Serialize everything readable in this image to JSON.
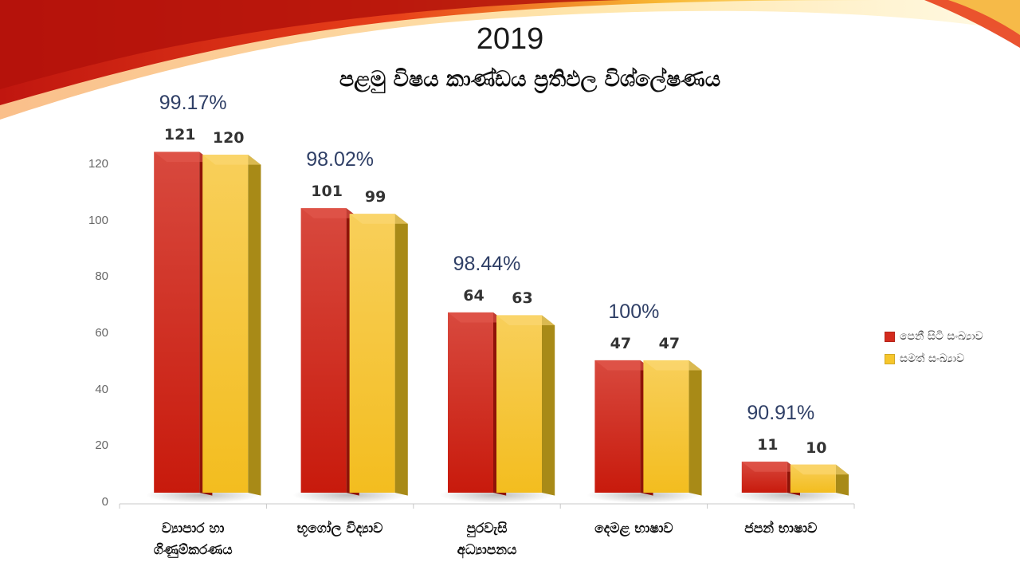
{
  "title": "2019",
  "subtitle": "පළමු විෂය කාණ්ඩය ප්‍රතිඵල විශ්ලේෂණය",
  "colors": {
    "sat": "#d42b1e",
    "pass": "#f6c62c",
    "percent_text": "#2f3f66"
  },
  "chart_data": {
    "type": "bar",
    "categories": [
      [
        "ව්‍යාපාර හා",
        "ගිණුම්කරණය"
      ],
      [
        "භූගෝල විද්‍යාව"
      ],
      [
        "පුරවැසි",
        "අධ්‍යාපනය"
      ],
      [
        "දෙමළ භාෂාව"
      ],
      [
        "ජපන් භාෂාව"
      ]
    ],
    "series": [
      {
        "name": "පෙනී සිටි සංඛ්‍යාව",
        "values": [
          121,
          101,
          64,
          47,
          11
        ]
      },
      {
        "name": "සමත් සංඛ්‍යාව",
        "values": [
          120,
          99,
          63,
          47,
          10
        ]
      }
    ],
    "annotations": [
      "99.17%",
      "98.02%",
      "98.44%",
      "100%",
      "90.91%"
    ],
    "ylim": [
      0,
      120
    ],
    "yticks": [
      0,
      20,
      40,
      60,
      80,
      100,
      120
    ],
    "grid": false,
    "legend": "right"
  }
}
